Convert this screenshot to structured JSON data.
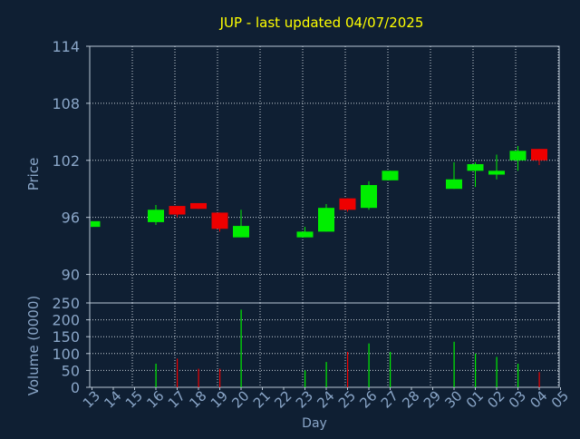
{
  "colors": {
    "background": "#0f1f33",
    "plot_background": "#0f1f33",
    "frame": "#b9c7d6",
    "grid": "#c8d0d8",
    "title": "#ffff00",
    "axis_text": "#8aa6c8",
    "up": "#00ee00",
    "down": "#ee0000"
  },
  "chart_data": [
    {
      "type": "candlestick",
      "title": "JUP - last updated 04/07/2025",
      "ylabel": "Price",
      "ylim": [
        87,
        114
      ],
      "yticks": [
        90,
        96,
        102,
        108,
        114
      ],
      "grid": true,
      "categories": [
        "13",
        "14",
        "15",
        "16",
        "17",
        "18",
        "19",
        "20",
        "21",
        "22",
        "23",
        "24",
        "25",
        "26",
        "27",
        "28",
        "29",
        "30",
        "01",
        "02",
        "03",
        "04",
        "05"
      ],
      "candles": [
        {
          "x": "13",
          "open": 95.0,
          "high": 95.6,
          "low": 95.0,
          "close": 95.6
        },
        {
          "x": "16",
          "open": 95.5,
          "high": 97.3,
          "low": 95.2,
          "close": 96.8
        },
        {
          "x": "17",
          "open": 97.2,
          "high": 97.2,
          "low": 96.0,
          "close": 96.3
        },
        {
          "x": "18",
          "open": 97.5,
          "high": 97.5,
          "low": 96.9,
          "close": 96.9
        },
        {
          "x": "19",
          "open": 96.5,
          "high": 96.5,
          "low": 94.5,
          "close": 94.8
        },
        {
          "x": "20",
          "open": 93.9,
          "high": 96.8,
          "low": 93.9,
          "close": 95.1
        },
        {
          "x": "23",
          "open": 93.9,
          "high": 95.0,
          "low": 93.9,
          "close": 94.5
        },
        {
          "x": "24",
          "open": 94.5,
          "high": 97.4,
          "low": 94.5,
          "close": 97.0
        },
        {
          "x": "25",
          "open": 98.0,
          "high": 98.0,
          "low": 96.6,
          "close": 96.8
        },
        {
          "x": "26",
          "open": 97.0,
          "high": 99.8,
          "low": 96.8,
          "close": 99.4
        },
        {
          "x": "27",
          "open": 99.9,
          "high": 100.9,
          "low": 99.9,
          "close": 100.9
        },
        {
          "x": "30",
          "open": 99.0,
          "high": 101.8,
          "low": 99.0,
          "close": 100.0
        },
        {
          "x": "01",
          "open": 100.9,
          "high": 101.8,
          "low": 99.2,
          "close": 101.6
        },
        {
          "x": "02",
          "open": 100.5,
          "high": 102.6,
          "low": 100.0,
          "close": 100.9
        },
        {
          "x": "03",
          "open": 102.0,
          "high": 103.5,
          "low": 100.9,
          "close": 103.0
        },
        {
          "x": "04",
          "open": 103.2,
          "high": 103.2,
          "low": 101.5,
          "close": 102.0
        }
      ]
    },
    {
      "type": "bar",
      "ylabel": "Volume (0000)",
      "xlabel": "Day",
      "ylim": [
        0,
        250
      ],
      "yticks": [
        0,
        50,
        100,
        150,
        200,
        250
      ],
      "grid": true,
      "categories": [
        "13",
        "14",
        "15",
        "16",
        "17",
        "18",
        "19",
        "20",
        "21",
        "22",
        "23",
        "24",
        "25",
        "26",
        "27",
        "28",
        "29",
        "30",
        "01",
        "02",
        "03",
        "04",
        "05"
      ],
      "bars": [
        {
          "x": "16",
          "value": 70,
          "direction": "up"
        },
        {
          "x": "17",
          "value": 85,
          "direction": "down"
        },
        {
          "x": "18",
          "value": 55,
          "direction": "down"
        },
        {
          "x": "19",
          "value": 55,
          "direction": "down"
        },
        {
          "x": "20",
          "value": 230,
          "direction": "up"
        },
        {
          "x": "23",
          "value": 50,
          "direction": "up"
        },
        {
          "x": "24",
          "value": 75,
          "direction": "up"
        },
        {
          "x": "25",
          "value": 105,
          "direction": "down"
        },
        {
          "x": "26",
          "value": 130,
          "direction": "up"
        },
        {
          "x": "27",
          "value": 105,
          "direction": "up"
        },
        {
          "x": "30",
          "value": 135,
          "direction": "up"
        },
        {
          "x": "01",
          "value": 100,
          "direction": "up"
        },
        {
          "x": "02",
          "value": 90,
          "direction": "up"
        },
        {
          "x": "03",
          "value": 70,
          "direction": "up"
        },
        {
          "x": "04",
          "value": 45,
          "direction": "down"
        }
      ]
    }
  ]
}
